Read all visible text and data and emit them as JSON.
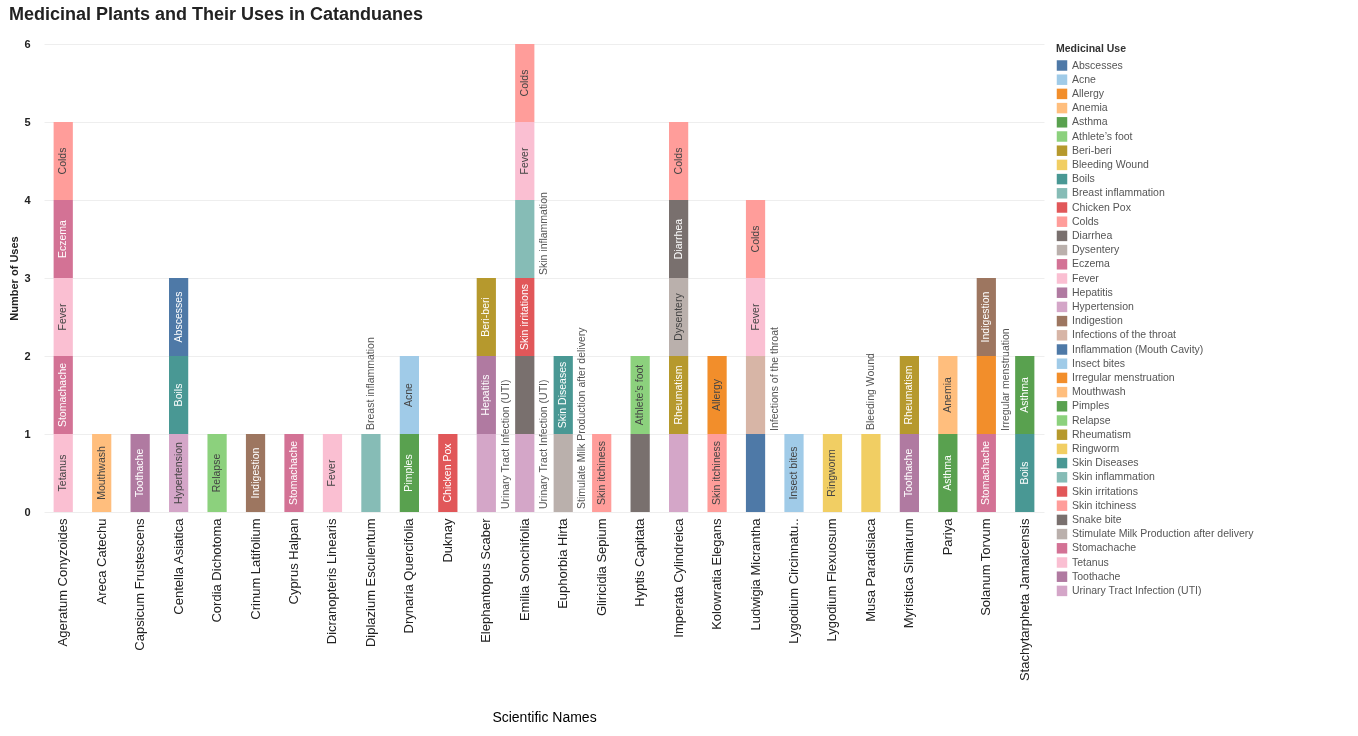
{
  "chart_data": {
    "type": "bar",
    "title": "Medicinal Plants and Their Uses in Catanduanes",
    "xlabel": "Scientific Names",
    "ylabel": "Number of Uses",
    "legend_title": "Medicinal Use",
    "categories": [
      "Ageratum Conyzoides",
      "Areca Catechu",
      "Capsicum Frustescens",
      "Centella Asiatica",
      "Cordia Dichotoma",
      "Crinum Latifolium",
      "Cyprus Halpan",
      "Dicranopteris Linearis",
      "Diplazium Esculentum",
      "Drynaria Quercifolia",
      "Duknay",
      "Elephantopus Scaber",
      "Emilia Sonchifolia",
      "Euphorbia Hirta",
      "Gliricidia Sepium",
      "Hyptis Capitata",
      "Imperata Cylindreica",
      "Kolowratia Elegans",
      "Ludwigia Micrantha",
      "Lygodium Circinnatu..",
      "Lygodium Flexuosum",
      "Musa Paradisiaca",
      "Myristica Simiarum",
      "Pariya",
      "Solanum Torvum",
      "Stachytarpheta Jamaicensis"
    ],
    "stacked": true,
    "ylim": [
      0,
      6
    ],
    "yticks": [
      0,
      1,
      2,
      3,
      4,
      5,
      6
    ],
    "grid": "y",
    "legend": "right",
    "series": [
      {
        "name": "Urinary Tract Infection (UTI)",
        "color": "#d4a6c8",
        "values": [
          null,
          null,
          null,
          null,
          null,
          null,
          null,
          null,
          null,
          null,
          null,
          1,
          1,
          null,
          null,
          null,
          1,
          null,
          null,
          null,
          null,
          null,
          null,
          null,
          null,
          null
        ],
        "value_labels": [
          null,
          null,
          null,
          null,
          null,
          null,
          null,
          null,
          null,
          null,
          null,
          "Urinary Tract Infection (UTI)",
          "Urinary Tract Infection (UTI)",
          null,
          null,
          null,
          null,
          null,
          null,
          null,
          null,
          null,
          null,
          null,
          null,
          null
        ]
      },
      {
        "name": "Toothache",
        "color": "#b07aa1",
        "values": [
          null,
          null,
          1,
          null,
          null,
          null,
          null,
          null,
          null,
          null,
          null,
          null,
          null,
          null,
          null,
          null,
          null,
          null,
          null,
          null,
          null,
          null,
          1,
          null,
          null,
          null
        ],
        "value_labels": [
          null,
          null,
          "Toothache",
          null,
          null,
          null,
          null,
          null,
          null,
          null,
          null,
          null,
          null,
          null,
          null,
          null,
          null,
          null,
          null,
          null,
          null,
          null,
          "Toothache",
          null,
          null,
          null
        ]
      },
      {
        "name": "Tetanus",
        "color": "#fabfd2",
        "values": [
          1,
          null,
          null,
          null,
          null,
          null,
          null,
          null,
          null,
          null,
          null,
          null,
          null,
          null,
          null,
          null,
          null,
          null,
          null,
          null,
          null,
          null,
          null,
          null,
          null,
          null
        ],
        "value_labels": [
          "Tetanus",
          null,
          null,
          null,
          null,
          null,
          null,
          null,
          null,
          null,
          null,
          null,
          null,
          null,
          null,
          null,
          null,
          null,
          null,
          null,
          null,
          null,
          null,
          null,
          null,
          null
        ]
      },
      {
        "name": "Stomachache",
        "color": "#d37295",
        "values": [
          1,
          null,
          null,
          null,
          null,
          null,
          1,
          null,
          null,
          null,
          null,
          null,
          null,
          null,
          null,
          null,
          null,
          null,
          null,
          null,
          null,
          null,
          null,
          null,
          1,
          null
        ],
        "value_labels": [
          "Stomachache",
          null,
          null,
          null,
          null,
          null,
          "Stomachache",
          null,
          null,
          null,
          null,
          null,
          null,
          null,
          null,
          null,
          null,
          null,
          null,
          null,
          null,
          null,
          null,
          null,
          "Stomachache",
          null
        ]
      },
      {
        "name": "Stimulate Milk Production after delivery",
        "color": "#bab0ac",
        "values": [
          null,
          null,
          null,
          null,
          null,
          null,
          null,
          null,
          null,
          null,
          null,
          null,
          null,
          1,
          null,
          null,
          null,
          null,
          null,
          null,
          null,
          null,
          null,
          null,
          null,
          null
        ],
        "value_labels": [
          null,
          null,
          null,
          null,
          null,
          null,
          null,
          null,
          null,
          null,
          null,
          null,
          null,
          "Stimulate Milk Production after delivery",
          null,
          null,
          null,
          null,
          null,
          null,
          null,
          null,
          null,
          null,
          null,
          null
        ]
      },
      {
        "name": "Snake bite",
        "color": "#79706e",
        "values": [
          null,
          null,
          null,
          null,
          null,
          null,
          null,
          null,
          null,
          null,
          null,
          null,
          1,
          null,
          null,
          1,
          null,
          null,
          null,
          null,
          null,
          null,
          null,
          null,
          null,
          null
        ]
      },
      {
        "name": "Skin itchiness",
        "color": "#ff9d9a",
        "values": [
          null,
          null,
          null,
          null,
          null,
          null,
          null,
          null,
          null,
          null,
          null,
          null,
          null,
          null,
          1,
          null,
          null,
          1,
          null,
          null,
          null,
          null,
          null,
          null,
          null,
          null
        ],
        "value_labels": [
          null,
          null,
          null,
          null,
          null,
          null,
          null,
          null,
          null,
          null,
          null,
          null,
          null,
          null,
          "Skin itchiness",
          null,
          null,
          "Skin itchiness",
          null,
          null,
          null,
          null,
          null,
          null,
          null,
          null
        ]
      },
      {
        "name": "Skin irritations",
        "color": "#e15759",
        "values": [
          null,
          null,
          null,
          null,
          null,
          null,
          null,
          null,
          null,
          null,
          null,
          null,
          1,
          null,
          null,
          null,
          null,
          null,
          null,
          null,
          null,
          null,
          null,
          null,
          null,
          null
        ],
        "value_labels": [
          null,
          null,
          null,
          null,
          null,
          null,
          null,
          null,
          null,
          null,
          null,
          null,
          "Skin irritations",
          null,
          null,
          null,
          null,
          null,
          null,
          null,
          null,
          null,
          null,
          null,
          null,
          null
        ]
      },
      {
        "name": "Skin inflammation",
        "color": "#86bcb6",
        "values": [
          null,
          null,
          null,
          null,
          null,
          null,
          null,
          null,
          null,
          null,
          null,
          null,
          1,
          null,
          null,
          null,
          null,
          null,
          null,
          null,
          null,
          null,
          null,
          null,
          null,
          null
        ],
        "value_labels": [
          null,
          null,
          null,
          null,
          null,
          null,
          null,
          null,
          null,
          null,
          null,
          null,
          "Skin inflammation",
          null,
          null,
          null,
          null,
          null,
          null,
          null,
          null,
          null,
          null,
          null,
          null,
          null
        ]
      },
      {
        "name": "Skin Diseases",
        "color": "#499894",
        "values": [
          null,
          null,
          null,
          null,
          null,
          null,
          null,
          null,
          null,
          null,
          null,
          null,
          null,
          1,
          null,
          null,
          null,
          null,
          null,
          null,
          null,
          null,
          null,
          null,
          null,
          null
        ],
        "value_labels": [
          null,
          null,
          null,
          null,
          null,
          null,
          null,
          null,
          null,
          null,
          null,
          null,
          null,
          "Skin Diseases",
          null,
          null,
          null,
          null,
          null,
          null,
          null,
          null,
          null,
          null,
          null,
          null
        ]
      },
      {
        "name": "Ringworm",
        "color": "#f1ce63",
        "values": [
          null,
          null,
          null,
          null,
          null,
          null,
          null,
          null,
          null,
          null,
          null,
          null,
          null,
          null,
          null,
          null,
          null,
          null,
          null,
          null,
          1,
          null,
          null,
          null,
          null,
          null
        ],
        "value_labels": [
          null,
          null,
          null,
          null,
          null,
          null,
          null,
          null,
          null,
          null,
          null,
          null,
          null,
          null,
          null,
          null,
          null,
          null,
          null,
          null,
          "Ringworm",
          null,
          null,
          null,
          null,
          null
        ]
      },
      {
        "name": "Rheumatism",
        "color": "#b6992d",
        "values": [
          null,
          null,
          null,
          null,
          null,
          null,
          null,
          null,
          null,
          null,
          null,
          null,
          null,
          null,
          null,
          null,
          1,
          null,
          null,
          null,
          null,
          null,
          1,
          null,
          null,
          null
        ],
        "value_labels": [
          null,
          null,
          null,
          null,
          null,
          null,
          null,
          null,
          null,
          null,
          null,
          null,
          null,
          null,
          null,
          null,
          "Rheumatism",
          null,
          null,
          null,
          null,
          null,
          "Rheumatism",
          null,
          null,
          null
        ]
      },
      {
        "name": "Relapse",
        "color": "#8cd17d",
        "values": [
          null,
          null,
          null,
          null,
          1,
          null,
          null,
          null,
          null,
          null,
          null,
          null,
          null,
          null,
          null,
          null,
          null,
          null,
          null,
          null,
          null,
          null,
          null,
          null,
          null,
          null
        ],
        "value_labels": [
          null,
          null,
          null,
          null,
          "Relapse",
          null,
          null,
          null,
          null,
          null,
          null,
          null,
          null,
          null,
          null,
          null,
          null,
          null,
          null,
          null,
          null,
          null,
          null,
          null,
          null,
          null
        ]
      },
      {
        "name": "Pimples",
        "color": "#59a14f",
        "values": [
          null,
          null,
          null,
          null,
          null,
          null,
          null,
          null,
          null,
          1,
          null,
          null,
          null,
          null,
          null,
          null,
          null,
          null,
          null,
          null,
          null,
          null,
          null,
          null,
          null,
          null
        ],
        "value_labels": [
          null,
          null,
          null,
          null,
          null,
          null,
          null,
          null,
          null,
          "Pimples",
          null,
          null,
          null,
          null,
          null,
          null,
          null,
          null,
          null,
          null,
          null,
          null,
          null,
          null,
          null,
          null
        ]
      },
      {
        "name": "Mouthwash",
        "color": "#ffbe7d",
        "values": [
          null,
          1,
          null,
          null,
          null,
          null,
          null,
          null,
          null,
          null,
          null,
          null,
          null,
          null,
          null,
          null,
          null,
          null,
          null,
          null,
          null,
          null,
          null,
          null,
          null,
          null
        ],
        "value_labels": [
          null,
          "Mouthwash",
          null,
          null,
          null,
          null,
          null,
          null,
          null,
          null,
          null,
          null,
          null,
          null,
          null,
          null,
          null,
          null,
          null,
          null,
          null,
          null,
          null,
          null,
          null,
          null
        ]
      },
      {
        "name": "Irregular menstruation",
        "color": "#f28e2b",
        "values": [
          null,
          null,
          null,
          null,
          null,
          null,
          null,
          null,
          null,
          null,
          null,
          null,
          null,
          null,
          null,
          null,
          null,
          null,
          null,
          null,
          null,
          null,
          null,
          null,
          1,
          null
        ],
        "value_labels": [
          null,
          null,
          null,
          null,
          null,
          null,
          null,
          null,
          null,
          null,
          null,
          null,
          null,
          null,
          null,
          null,
          null,
          null,
          null,
          null,
          null,
          null,
          null,
          null,
          "Irregular menstruation",
          null
        ]
      },
      {
        "name": "Insect bites",
        "color": "#a0cbe8",
        "values": [
          null,
          null,
          null,
          null,
          null,
          null,
          null,
          null,
          null,
          null,
          null,
          null,
          null,
          null,
          null,
          null,
          null,
          null,
          null,
          1,
          null,
          null,
          null,
          null,
          null,
          null
        ],
        "value_labels": [
          null,
          null,
          null,
          null,
          null,
          null,
          null,
          null,
          null,
          null,
          null,
          null,
          null,
          null,
          null,
          null,
          null,
          null,
          null,
          "Insect bites",
          null,
          null,
          null,
          null,
          null,
          null
        ]
      },
      {
        "name": "Inflammation (Mouth Cavity)",
        "color": "#4e79a7",
        "values": [
          null,
          null,
          null,
          null,
          null,
          null,
          null,
          null,
          null,
          null,
          null,
          null,
          null,
          null,
          null,
          null,
          null,
          null,
          1,
          null,
          null,
          null,
          null,
          null,
          null,
          null
        ]
      },
      {
        "name": "Infections of the throat",
        "color": "#d7b5a6",
        "values": [
          null,
          null,
          null,
          null,
          null,
          null,
          null,
          null,
          null,
          null,
          null,
          null,
          null,
          null,
          null,
          null,
          null,
          null,
          1,
          null,
          null,
          null,
          null,
          null,
          null,
          null
        ],
        "value_labels": [
          null,
          null,
          null,
          null,
          null,
          null,
          null,
          null,
          null,
          null,
          null,
          null,
          null,
          null,
          null,
          null,
          null,
          null,
          "Infections of the throat",
          null,
          null,
          null,
          null,
          null,
          null,
          null
        ]
      },
      {
        "name": "Indigestion",
        "color": "#9d7660",
        "values": [
          null,
          null,
          null,
          null,
          null,
          1,
          null,
          null,
          null,
          null,
          null,
          null,
          null,
          null,
          null,
          null,
          null,
          null,
          null,
          null,
          null,
          null,
          null,
          null,
          1,
          null
        ],
        "value_labels": [
          null,
          null,
          null,
          null,
          null,
          "Indigestion",
          null,
          null,
          null,
          null,
          null,
          null,
          null,
          null,
          null,
          null,
          null,
          null,
          null,
          null,
          null,
          null,
          null,
          null,
          "Indigestion",
          null
        ]
      },
      {
        "name": "Hypertension",
        "color": "#d4a6c8",
        "values": [
          null,
          null,
          null,
          1,
          null,
          null,
          null,
          null,
          null,
          null,
          null,
          null,
          null,
          null,
          null,
          null,
          null,
          null,
          null,
          null,
          null,
          null,
          null,
          null,
          null,
          null
        ],
        "value_labels": [
          null,
          null,
          null,
          "Hypertension",
          null,
          null,
          null,
          null,
          null,
          null,
          null,
          null,
          null,
          null,
          null,
          null,
          null,
          null,
          null,
          null,
          null,
          null,
          null,
          null,
          null,
          null
        ]
      },
      {
        "name": "Hepatitis",
        "color": "#b07aa1",
        "values": [
          null,
          null,
          null,
          null,
          null,
          null,
          null,
          null,
          null,
          null,
          null,
          1,
          null,
          null,
          null,
          null,
          null,
          null,
          null,
          null,
          null,
          null,
          null,
          null,
          null,
          null
        ],
        "value_labels": [
          null,
          null,
          null,
          null,
          null,
          null,
          null,
          null,
          null,
          null,
          null,
          "Hepatitis",
          null,
          null,
          null,
          null,
          null,
          null,
          null,
          null,
          null,
          null,
          null,
          null,
          null,
          null
        ]
      },
      {
        "name": "Fever",
        "color": "#fabfd2",
        "values": [
          1,
          null,
          null,
          null,
          null,
          null,
          null,
          1,
          null,
          null,
          null,
          null,
          1,
          null,
          null,
          null,
          null,
          null,
          1,
          null,
          null,
          null,
          null,
          null,
          null,
          null
        ],
        "value_labels": [
          "Fever",
          null,
          null,
          null,
          null,
          null,
          null,
          "Fever",
          null,
          null,
          null,
          null,
          "Fever",
          null,
          null,
          null,
          null,
          null,
          "Fever",
          null,
          null,
          null,
          null,
          null,
          null,
          null
        ]
      },
      {
        "name": "Eczema",
        "color": "#d37295",
        "values": [
          1,
          null,
          null,
          null,
          null,
          null,
          null,
          null,
          null,
          null,
          null,
          null,
          null,
          null,
          null,
          null,
          null,
          null,
          null,
          null,
          null,
          null,
          null,
          null,
          null,
          null
        ],
        "value_labels": [
          "Eczema",
          null,
          null,
          null,
          null,
          null,
          null,
          null,
          null,
          null,
          null,
          null,
          null,
          null,
          null,
          null,
          null,
          null,
          null,
          null,
          null,
          null,
          null,
          null,
          null,
          null
        ]
      },
      {
        "name": "Dysentery",
        "color": "#bab0ac",
        "values": [
          null,
          null,
          null,
          null,
          null,
          null,
          null,
          null,
          null,
          null,
          null,
          null,
          null,
          null,
          null,
          null,
          1,
          null,
          null,
          null,
          null,
          null,
          null,
          null,
          null,
          null
        ],
        "value_labels": [
          null,
          null,
          null,
          null,
          null,
          null,
          null,
          null,
          null,
          null,
          null,
          null,
          null,
          null,
          null,
          null,
          "Dysentery",
          null,
          null,
          null,
          null,
          null,
          null,
          null,
          null,
          null
        ]
      },
      {
        "name": "Diarrhea",
        "color": "#79706e",
        "values": [
          null,
          null,
          null,
          null,
          null,
          null,
          null,
          null,
          null,
          null,
          null,
          null,
          null,
          null,
          null,
          null,
          1,
          null,
          null,
          null,
          null,
          null,
          null,
          null,
          null,
          null
        ],
        "value_labels": [
          null,
          null,
          null,
          null,
          null,
          null,
          null,
          null,
          null,
          null,
          null,
          null,
          null,
          null,
          null,
          null,
          "Diarrhea",
          null,
          null,
          null,
          null,
          null,
          null,
          null,
          null,
          null
        ]
      },
      {
        "name": "Colds",
        "color": "#ff9d9a",
        "values": [
          1,
          null,
          null,
          null,
          null,
          null,
          null,
          null,
          null,
          null,
          null,
          null,
          1,
          null,
          null,
          null,
          1,
          null,
          1,
          null,
          null,
          null,
          null,
          null,
          null,
          null
        ],
        "value_labels": [
          "Colds",
          null,
          null,
          null,
          null,
          null,
          null,
          null,
          null,
          null,
          null,
          null,
          "Colds",
          null,
          null,
          null,
          "Colds",
          null,
          "Colds",
          null,
          null,
          null,
          null,
          null,
          null,
          null
        ]
      },
      {
        "name": "Chicken Pox",
        "color": "#e15759",
        "values": [
          null,
          null,
          null,
          null,
          null,
          null,
          null,
          null,
          null,
          null,
          1,
          null,
          null,
          null,
          null,
          null,
          null,
          null,
          null,
          null,
          null,
          null,
          null,
          null,
          null,
          null
        ],
        "value_labels": [
          null,
          null,
          null,
          null,
          null,
          null,
          null,
          null,
          null,
          null,
          "Chicken Pox",
          null,
          null,
          null,
          null,
          null,
          null,
          null,
          null,
          null,
          null,
          null,
          null,
          null,
          null,
          null
        ]
      },
      {
        "name": "Breast inflammation",
        "color": "#86bcb6",
        "values": [
          null,
          null,
          null,
          null,
          null,
          null,
          null,
          null,
          1,
          null,
          null,
          null,
          null,
          null,
          null,
          null,
          null,
          null,
          null,
          null,
          null,
          null,
          null,
          null,
          null,
          null
        ],
        "value_labels": [
          null,
          null,
          null,
          null,
          null,
          null,
          null,
          null,
          "Breast inflammation",
          null,
          null,
          null,
          null,
          null,
          null,
          null,
          null,
          null,
          null,
          null,
          null,
          null,
          null,
          null,
          null,
          null
        ]
      },
      {
        "name": "Boils",
        "color": "#499894",
        "values": [
          null,
          null,
          null,
          1,
          null,
          null,
          null,
          null,
          null,
          null,
          null,
          null,
          null,
          null,
          null,
          null,
          null,
          null,
          null,
          null,
          null,
          null,
          null,
          null,
          null,
          1
        ],
        "value_labels": [
          null,
          null,
          null,
          "Boils",
          null,
          null,
          null,
          null,
          null,
          null,
          null,
          null,
          null,
          null,
          null,
          null,
          null,
          null,
          null,
          null,
          null,
          null,
          null,
          null,
          null,
          "Boils"
        ]
      },
      {
        "name": "Bleeding Wound",
        "color": "#f1ce63",
        "values": [
          null,
          null,
          null,
          null,
          null,
          null,
          null,
          null,
          null,
          null,
          null,
          null,
          null,
          null,
          null,
          null,
          null,
          null,
          null,
          null,
          null,
          1,
          null,
          null,
          null,
          null
        ],
        "value_labels": [
          null,
          null,
          null,
          null,
          null,
          null,
          null,
          null,
          null,
          null,
          null,
          null,
          null,
          null,
          null,
          null,
          null,
          null,
          null,
          null,
          null,
          "Bleeding Wound",
          null,
          null,
          null,
          null
        ]
      },
      {
        "name": "Beri-beri",
        "color": "#b6992d",
        "values": [
          null,
          null,
          null,
          null,
          null,
          null,
          null,
          null,
          null,
          null,
          null,
          1,
          null,
          null,
          null,
          null,
          null,
          null,
          null,
          null,
          null,
          null,
          null,
          null,
          null,
          null
        ],
        "value_labels": [
          null,
          null,
          null,
          null,
          null,
          null,
          null,
          null,
          null,
          null,
          null,
          "Beri-beri",
          null,
          null,
          null,
          null,
          null,
          null,
          null,
          null,
          null,
          null,
          null,
          null,
          null,
          null
        ]
      },
      {
        "name": "Athlete’s foot",
        "color": "#8cd17d",
        "values": [
          null,
          null,
          null,
          null,
          null,
          null,
          null,
          null,
          null,
          null,
          null,
          null,
          null,
          null,
          null,
          1,
          null,
          null,
          null,
          null,
          null,
          null,
          null,
          null,
          null,
          null
        ],
        "value_labels": [
          null,
          null,
          null,
          null,
          null,
          null,
          null,
          null,
          null,
          null,
          null,
          null,
          null,
          null,
          null,
          "Athlete’s foot",
          null,
          null,
          null,
          null,
          null,
          null,
          null,
          null,
          null,
          null
        ]
      },
      {
        "name": "Asthma",
        "color": "#59a14f",
        "values": [
          null,
          null,
          null,
          null,
          null,
          null,
          null,
          null,
          null,
          null,
          null,
          null,
          null,
          null,
          null,
          null,
          null,
          null,
          null,
          null,
          null,
          null,
          null,
          1,
          null,
          1
        ],
        "value_labels": [
          null,
          null,
          null,
          null,
          null,
          null,
          null,
          null,
          null,
          null,
          null,
          null,
          null,
          null,
          null,
          null,
          null,
          null,
          null,
          null,
          null,
          null,
          null,
          "Asthma",
          null,
          "Asthma"
        ]
      },
      {
        "name": "Anemia",
        "color": "#ffbe7d",
        "values": [
          null,
          null,
          null,
          null,
          null,
          null,
          null,
          null,
          null,
          null,
          null,
          null,
          null,
          null,
          null,
          null,
          null,
          null,
          null,
          null,
          null,
          null,
          null,
          1,
          null,
          null
        ],
        "value_labels": [
          null,
          null,
          null,
          null,
          null,
          null,
          null,
          null,
          null,
          null,
          null,
          null,
          null,
          null,
          null,
          null,
          null,
          null,
          null,
          null,
          null,
          null,
          null,
          "Anemia",
          null,
          null
        ]
      },
      {
        "name": "Allergy",
        "color": "#f28e2b",
        "values": [
          null,
          null,
          null,
          null,
          null,
          null,
          null,
          null,
          null,
          null,
          null,
          null,
          null,
          null,
          null,
          null,
          null,
          1,
          null,
          null,
          null,
          null,
          null,
          null,
          null,
          null
        ],
        "value_labels": [
          null,
          null,
          null,
          null,
          null,
          null,
          null,
          null,
          null,
          null,
          null,
          null,
          null,
          null,
          null,
          null,
          null,
          "Allergy",
          null,
          null,
          null,
          null,
          null,
          null,
          null,
          null
        ]
      },
      {
        "name": "Acne",
        "color": "#a0cbe8",
        "values": [
          null,
          null,
          null,
          null,
          null,
          null,
          null,
          null,
          null,
          1,
          null,
          null,
          null,
          null,
          null,
          null,
          null,
          null,
          null,
          null,
          null,
          null,
          null,
          null,
          null,
          null
        ],
        "value_labels": [
          null,
          null,
          null,
          null,
          null,
          null,
          null,
          null,
          null,
          "Acne",
          null,
          null,
          null,
          null,
          null,
          null,
          null,
          null,
          null,
          null,
          null,
          null,
          null,
          null,
          null,
          null
        ]
      },
      {
        "name": "Abscesses",
        "color": "#4e79a7",
        "values": [
          null,
          null,
          null,
          1,
          null,
          null,
          null,
          null,
          null,
          null,
          null,
          null,
          null,
          null,
          null,
          null,
          null,
          null,
          null,
          null,
          null,
          null,
          null,
          null,
          null,
          null
        ],
        "value_labels": [
          null,
          null,
          null,
          "Abscesses",
          null,
          null,
          null,
          null,
          null,
          null,
          null,
          null,
          null,
          null,
          null,
          null,
          null,
          null,
          null,
          null,
          null,
          null,
          null,
          null,
          null,
          null
        ]
      }
    ]
  }
}
